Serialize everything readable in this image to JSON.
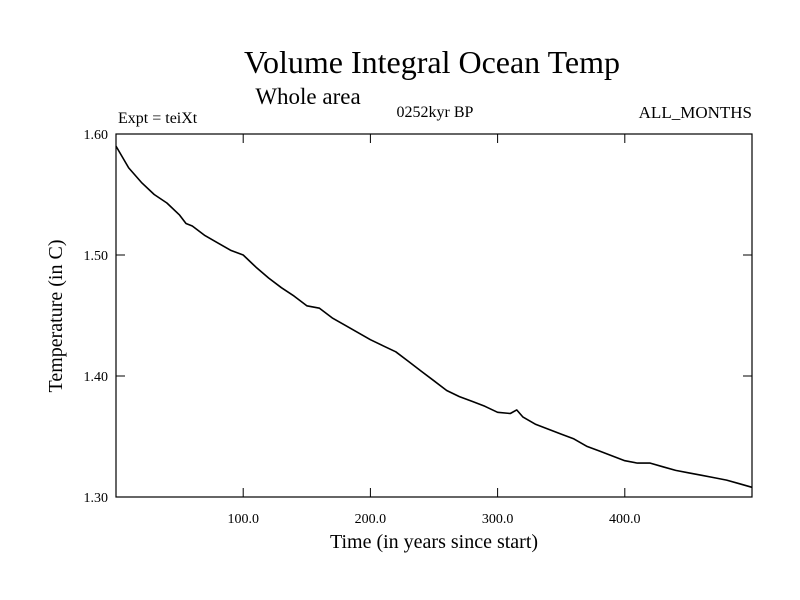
{
  "chart_data": {
    "type": "line",
    "title": "Volume Integral Ocean Temp",
    "subtitle": "Whole area",
    "annotations": {
      "left": "Expt = teiXt",
      "center": "0252kyr BP",
      "right": "ALL_MONTHS"
    },
    "xlabel": "Time (in years since start)",
    "ylabel": "Temperature (in C)",
    "xlim": [
      0,
      500
    ],
    "ylim": [
      1.3,
      1.6
    ],
    "x_ticks": [
      100,
      200,
      300,
      400
    ],
    "x_tick_labels": [
      "100.0",
      "200.0",
      "300.0",
      "400.0"
    ],
    "y_ticks": [
      1.3,
      1.4,
      1.5,
      1.6
    ],
    "y_tick_labels": [
      "1.30",
      "1.40",
      "1.50",
      "1.60"
    ],
    "grid": false,
    "series": [
      {
        "x": [
          0,
          10,
          20,
          30,
          40,
          50,
          55,
          60,
          70,
          80,
          90,
          100,
          110,
          120,
          130,
          140,
          150,
          160,
          170,
          180,
          190,
          200,
          210,
          220,
          230,
          240,
          250,
          260,
          270,
          280,
          290,
          300,
          310,
          315,
          320,
          330,
          340,
          350,
          360,
          370,
          380,
          390,
          400,
          410,
          420,
          430,
          440,
          450,
          460,
          470,
          480,
          490,
          500
        ],
        "y": [
          1.59,
          1.572,
          1.56,
          1.55,
          1.543,
          1.533,
          1.526,
          1.524,
          1.516,
          1.51,
          1.504,
          1.5,
          1.49,
          1.481,
          1.473,
          1.466,
          1.458,
          1.456,
          1.448,
          1.442,
          1.436,
          1.43,
          1.425,
          1.42,
          1.412,
          1.404,
          1.396,
          1.388,
          1.383,
          1.379,
          1.375,
          1.37,
          1.369,
          1.372,
          1.366,
          1.36,
          1.356,
          1.352,
          1.348,
          1.342,
          1.338,
          1.334,
          1.33,
          1.328,
          1.328,
          1.325,
          1.322,
          1.32,
          1.318,
          1.316,
          1.314,
          1.311,
          1.308
        ]
      }
    ]
  }
}
